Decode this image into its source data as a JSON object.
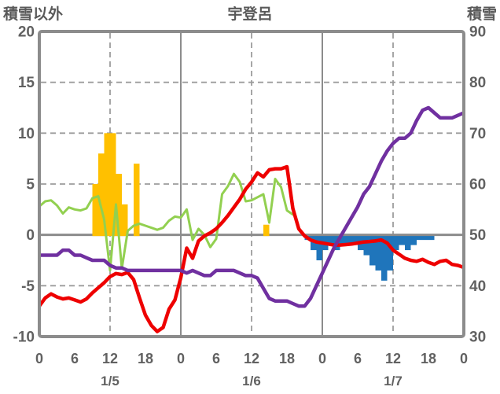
{
  "header": {
    "left_axis_title": "積雪以外",
    "station_title": "宇登呂",
    "right_axis_title": "積雪"
  },
  "chart_data": {
    "type": "line",
    "title": "宇登呂",
    "x_axis": {
      "total_hours": 72,
      "hour_label_step": 6,
      "hour_labels": [
        "0",
        "6",
        "12",
        "18",
        "0",
        "6",
        "12",
        "18",
        "0",
        "6",
        "12",
        "18",
        "0"
      ],
      "date_labels": [
        "1/5",
        "1/6",
        "1/7"
      ],
      "date_label_hours": [
        12,
        36,
        60
      ],
      "day_line_hours": [
        24,
        48
      ],
      "noon_dashed_hours": [
        12,
        36,
        60
      ]
    },
    "left_axis": {
      "label": "積雪以外",
      "min": -10,
      "max": 20,
      "ticks": [
        20,
        15,
        10,
        5,
        0,
        -5,
        -10
      ],
      "dashed_gridlines": [
        15,
        10,
        5,
        -5
      ],
      "zero_line": 0
    },
    "right_axis": {
      "label": "積雪",
      "min": 30,
      "max": 90,
      "ticks": [
        90,
        80,
        70,
        60,
        50,
        40,
        30
      ]
    },
    "colors": {
      "temperature_line": "#EE0000",
      "wind_line": "#92D050",
      "snow_depth_line": "#7030A0",
      "sunshine_bars": "#FFC000",
      "precipitation_bars": "#1F75BB",
      "border": "#8C8C8C",
      "gridline": "#9C9C9C",
      "zero_line": "#8C8C8C",
      "text": "#616161"
    },
    "series": [
      {
        "name": "sunshine-orange-bars",
        "type": "bar",
        "axis": "left",
        "color_key": "sunshine_bars",
        "bars": [
          [
            9,
            5
          ],
          [
            10,
            8
          ],
          [
            11,
            10
          ],
          [
            12,
            10
          ],
          [
            13,
            6
          ],
          [
            14,
            3
          ],
          [
            16,
            7
          ],
          [
            38,
            1
          ]
        ]
      },
      {
        "name": "precipitation-blue-bars",
        "type": "bar",
        "axis": "left",
        "color_key": "precipitation_bars",
        "bars": [
          [
            45,
            -0.5
          ],
          [
            46,
            -1.5
          ],
          [
            47,
            -2.5
          ],
          [
            48,
            -1.5
          ],
          [
            49,
            -1
          ],
          [
            50,
            -1.5
          ],
          [
            51,
            -1
          ],
          [
            52,
            -1
          ],
          [
            53,
            -1
          ],
          [
            54,
            -1.5
          ],
          [
            55,
            -2
          ],
          [
            56,
            -3
          ],
          [
            57,
            -3.5
          ],
          [
            58,
            -4.5
          ],
          [
            59,
            -3.5
          ],
          [
            60,
            -1.5
          ],
          [
            61,
            -1
          ],
          [
            62,
            -1.5
          ],
          [
            63,
            -1
          ],
          [
            64,
            -0.5
          ],
          [
            65,
            -0.5
          ],
          [
            66,
            -0.5
          ]
        ]
      },
      {
        "name": "wind-green-line",
        "type": "line",
        "axis": "left",
        "color_key": "wind_line",
        "width": 3,
        "points": [
          [
            0,
            2.8
          ],
          [
            1,
            3.3
          ],
          [
            2,
            3.4
          ],
          [
            3,
            2.9
          ],
          [
            4,
            2.1
          ],
          [
            5,
            2.7
          ],
          [
            6,
            2.5
          ],
          [
            7,
            2.4
          ],
          [
            8,
            2.6
          ],
          [
            9,
            3.6
          ],
          [
            10,
            3.8
          ],
          [
            11,
            1.5
          ],
          [
            12,
            -3.5
          ],
          [
            13,
            3.0
          ],
          [
            14,
            -3.3
          ],
          [
            15,
            0.4
          ],
          [
            16,
            0.9
          ],
          [
            17,
            1.1
          ],
          [
            18,
            0.9
          ],
          [
            19,
            0.7
          ],
          [
            20,
            0.5
          ],
          [
            21,
            0.7
          ],
          [
            22,
            1.4
          ],
          [
            23,
            1.8
          ],
          [
            24,
            1.7
          ],
          [
            25,
            2.5
          ],
          [
            26,
            -0.5
          ],
          [
            27,
            0.6
          ],
          [
            28,
            0.0
          ],
          [
            29,
            -1.2
          ],
          [
            30,
            -0.4
          ],
          [
            31,
            4.0
          ],
          [
            32,
            4.8
          ],
          [
            33,
            6.0
          ],
          [
            34,
            5.2
          ],
          [
            35,
            3.3
          ],
          [
            36,
            3.4
          ],
          [
            37,
            3.7
          ],
          [
            38,
            4.0
          ],
          [
            39,
            1.2
          ],
          [
            40,
            5.5
          ],
          [
            41,
            4.7
          ],
          [
            42,
            2.4
          ],
          [
            43,
            2.0
          ]
        ]
      },
      {
        "name": "temperature-red-line",
        "type": "line",
        "axis": "left",
        "color_key": "temperature_line",
        "width": 4.5,
        "points": [
          [
            0,
            -7.0
          ],
          [
            1,
            -6.2
          ],
          [
            2,
            -5.8
          ],
          [
            3,
            -6.1
          ],
          [
            4,
            -6.3
          ],
          [
            5,
            -6.2
          ],
          [
            6,
            -6.4
          ],
          [
            7,
            -6.6
          ],
          [
            8,
            -6.3
          ],
          [
            9,
            -5.7
          ],
          [
            10,
            -5.2
          ],
          [
            11,
            -4.7
          ],
          [
            12,
            -4.1
          ],
          [
            13,
            -3.8
          ],
          [
            14,
            -3.9
          ],
          [
            15,
            -3.7
          ],
          [
            16,
            -4.4
          ],
          [
            17,
            -6.2
          ],
          [
            18,
            -7.9
          ],
          [
            19,
            -8.9
          ],
          [
            20,
            -9.5
          ],
          [
            21,
            -9.1
          ],
          [
            22,
            -7.3
          ],
          [
            23,
            -6.4
          ],
          [
            24,
            -4.2
          ],
          [
            25,
            -1.3
          ],
          [
            26,
            -2.3
          ],
          [
            27,
            -0.6
          ],
          [
            28,
            -0.1
          ],
          [
            29,
            0.2
          ],
          [
            30,
            0.6
          ],
          [
            31,
            1.2
          ],
          [
            32,
            1.9
          ],
          [
            33,
            2.7
          ],
          [
            34,
            3.5
          ],
          [
            35,
            4.5
          ],
          [
            36,
            5.2
          ],
          [
            37,
            6.1
          ],
          [
            38,
            5.7
          ],
          [
            39,
            6.4
          ],
          [
            40,
            6.5
          ],
          [
            41,
            6.5
          ],
          [
            42,
            6.7
          ],
          [
            43,
            2.6
          ],
          [
            44,
            0.6
          ],
          [
            45,
            -0.1
          ],
          [
            46,
            -0.5
          ],
          [
            47,
            -0.7
          ],
          [
            48,
            -0.8
          ],
          [
            49,
            -0.9
          ],
          [
            50,
            -1.0
          ],
          [
            51,
            -1.0
          ],
          [
            52,
            -0.95
          ],
          [
            53,
            -0.9
          ],
          [
            54,
            -0.8
          ],
          [
            55,
            -0.7
          ],
          [
            56,
            -0.65
          ],
          [
            57,
            -0.6
          ],
          [
            58,
            -0.5
          ],
          [
            59,
            -0.8
          ],
          [
            60,
            -1.5
          ],
          [
            61,
            -1.9
          ],
          [
            62,
            -2.3
          ],
          [
            63,
            -2.5
          ],
          [
            64,
            -2.6
          ],
          [
            65,
            -2.4
          ],
          [
            66,
            -2.7
          ],
          [
            67,
            -2.9
          ],
          [
            68,
            -2.6
          ],
          [
            69,
            -2.5
          ],
          [
            70,
            -2.9
          ],
          [
            71,
            -3.0
          ],
          [
            72,
            -3.2
          ]
        ]
      },
      {
        "name": "snow-depth-purple-line",
        "type": "line",
        "axis": "right",
        "color_key": "snow_depth_line",
        "width": 4.5,
        "points": [
          [
            0,
            46
          ],
          [
            1,
            46
          ],
          [
            2,
            46
          ],
          [
            3,
            46
          ],
          [
            4,
            47
          ],
          [
            5,
            47
          ],
          [
            6,
            46
          ],
          [
            7,
            46
          ],
          [
            8,
            45.5
          ],
          [
            9,
            45
          ],
          [
            10,
            45
          ],
          [
            11,
            45
          ],
          [
            12,
            44
          ],
          [
            13,
            43.5
          ],
          [
            14,
            43.5
          ],
          [
            15,
            43
          ],
          [
            16,
            43
          ],
          [
            17,
            43
          ],
          [
            18,
            43
          ],
          [
            19,
            43
          ],
          [
            20,
            43
          ],
          [
            21,
            43
          ],
          [
            22,
            43
          ],
          [
            23,
            43
          ],
          [
            24,
            43
          ],
          [
            25,
            42.5
          ],
          [
            26,
            43
          ],
          [
            27,
            42.5
          ],
          [
            28,
            42
          ],
          [
            29,
            42
          ],
          [
            30,
            43
          ],
          [
            31,
            43
          ],
          [
            32,
            43
          ],
          [
            33,
            43
          ],
          [
            34,
            42.5
          ],
          [
            35,
            42
          ],
          [
            36,
            42
          ],
          [
            37,
            41.5
          ],
          [
            38,
            39.5
          ],
          [
            39,
            37.5
          ],
          [
            40,
            37
          ],
          [
            41,
            37
          ],
          [
            42,
            37
          ],
          [
            43,
            36.5
          ],
          [
            44,
            36
          ],
          [
            45,
            36
          ],
          [
            46,
            37.5
          ],
          [
            47,
            40
          ],
          [
            48,
            42.5
          ],
          [
            49,
            45
          ],
          [
            50,
            47.5
          ],
          [
            51,
            49.5
          ],
          [
            52,
            51.5
          ],
          [
            53,
            53.5
          ],
          [
            54,
            55.5
          ],
          [
            55,
            58
          ],
          [
            56,
            59.5
          ],
          [
            57,
            62
          ],
          [
            58,
            64.5
          ],
          [
            59,
            66.5
          ],
          [
            60,
            68
          ],
          [
            61,
            69
          ],
          [
            62,
            69
          ],
          [
            63,
            70
          ],
          [
            64,
            72.5
          ],
          [
            65,
            74.5
          ],
          [
            66,
            75
          ],
          [
            67,
            74
          ],
          [
            68,
            73
          ],
          [
            69,
            73
          ],
          [
            70,
            73
          ],
          [
            71,
            73.5
          ],
          [
            72,
            74
          ]
        ]
      }
    ]
  }
}
